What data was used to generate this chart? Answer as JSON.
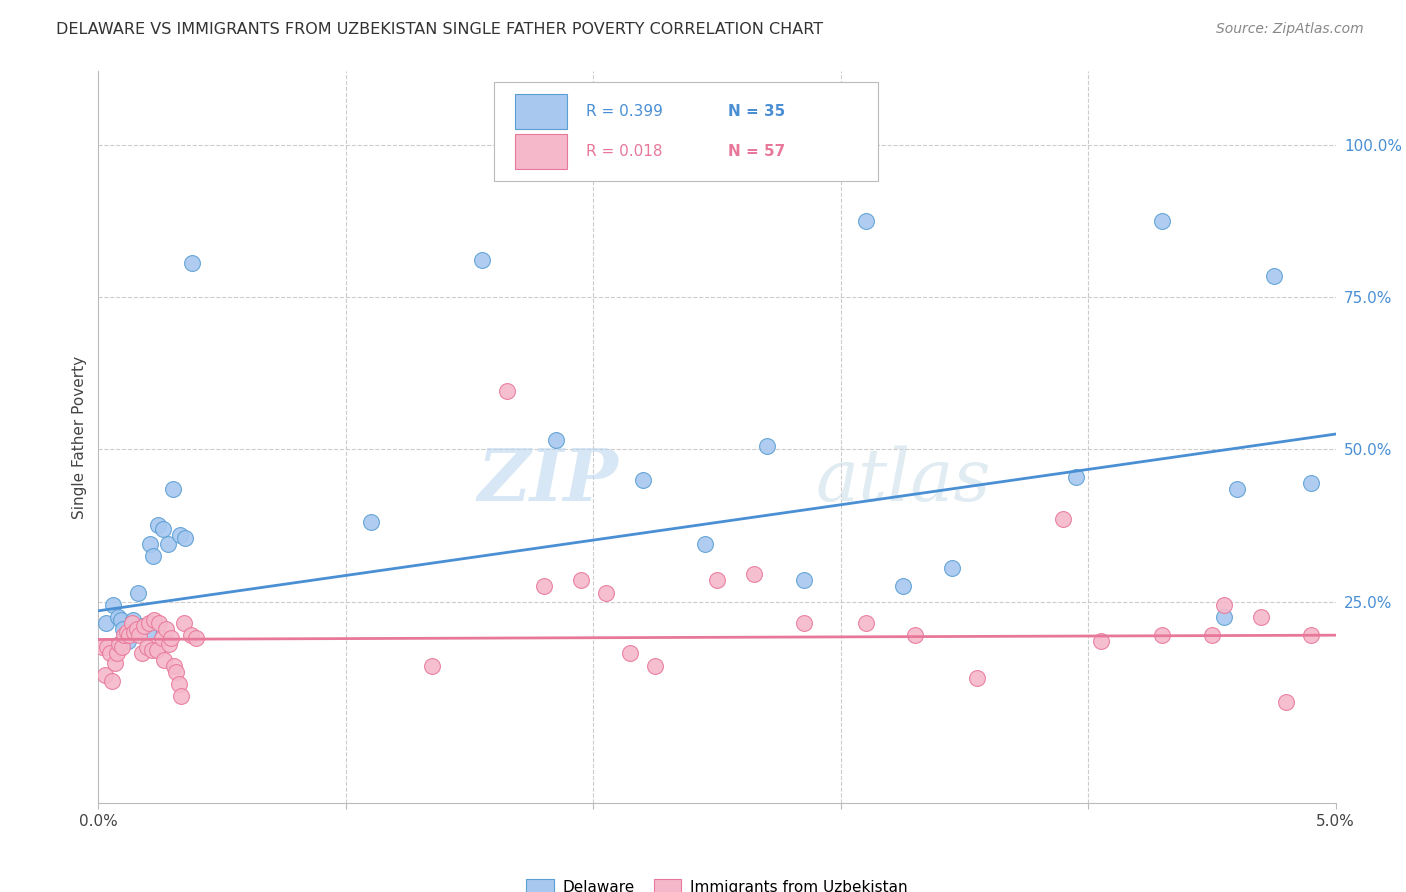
{
  "title": "DELAWARE VS IMMIGRANTS FROM UZBEKISTAN SINGLE FATHER POVERTY CORRELATION CHART",
  "source": "Source: ZipAtlas.com",
  "ylabel": "Single Father Poverty",
  "ylabel_right_ticks": [
    "100.0%",
    "75.0%",
    "50.0%",
    "25.0%"
  ],
  "ylabel_right_values": [
    1.0,
    0.75,
    0.5,
    0.25
  ],
  "xlim": [
    0.0,
    0.05
  ],
  "ylim": [
    -0.08,
    1.12
  ],
  "legend_r1": "0.399",
  "legend_n1": "35",
  "legend_r2": "0.018",
  "legend_n2": "57",
  "delaware_color": "#a8c8f0",
  "uzbekistan_color": "#f5b8cb",
  "delaware_edge_color": "#5a9fd4",
  "uzbekistan_edge_color": "#e8789a",
  "delaware_line_color": "#4a8fd4",
  "uzbekistan_line_color": "#e8789a",
  "right_tick_color": "#4a8fd4",
  "watermark": "ZIPatlas",
  "delaware_x": [
    0.0003,
    0.0006,
    0.0008,
    0.0009,
    0.001,
    0.0012,
    0.0014,
    0.0016,
    0.0018,
    0.002,
    0.0021,
    0.0022,
    0.0024,
    0.0026,
    0.0028,
    0.003,
    0.0033,
    0.0035,
    0.0038,
    0.011,
    0.0155,
    0.0185,
    0.022,
    0.0245,
    0.027,
    0.0285,
    0.031,
    0.0325,
    0.0345,
    0.0395,
    0.043,
    0.0455,
    0.046,
    0.0475,
    0.049
  ],
  "delaware_y": [
    0.215,
    0.245,
    0.225,
    0.22,
    0.205,
    0.185,
    0.22,
    0.265,
    0.21,
    0.2,
    0.345,
    0.325,
    0.375,
    0.37,
    0.345,
    0.435,
    0.36,
    0.355,
    0.805,
    0.38,
    0.81,
    0.515,
    0.45,
    0.345,
    0.505,
    0.285,
    0.875,
    0.275,
    0.305,
    0.455,
    0.875,
    0.225,
    0.435,
    0.785,
    0.445
  ],
  "uzbekistan_x": [
    0.00015,
    0.00025,
    0.00035,
    0.00045,
    0.00055,
    0.00065,
    0.00075,
    0.00085,
    0.00095,
    0.00105,
    0.00115,
    0.00125,
    0.00135,
    0.00145,
    0.00155,
    0.00165,
    0.00175,
    0.00185,
    0.00195,
    0.00205,
    0.00215,
    0.00225,
    0.00235,
    0.00245,
    0.00255,
    0.00265,
    0.00275,
    0.00285,
    0.00295,
    0.00305,
    0.00315,
    0.00325,
    0.00335,
    0.00345,
    0.00375,
    0.00395,
    0.0135,
    0.0165,
    0.018,
    0.0195,
    0.0205,
    0.0215,
    0.0225,
    0.025,
    0.0265,
    0.0285,
    0.031,
    0.033,
    0.0355,
    0.039,
    0.0405,
    0.043,
    0.045,
    0.0455,
    0.047,
    0.048,
    0.049
  ],
  "uzbekistan_y": [
    0.175,
    0.13,
    0.175,
    0.165,
    0.12,
    0.15,
    0.165,
    0.18,
    0.175,
    0.195,
    0.2,
    0.195,
    0.215,
    0.2,
    0.205,
    0.195,
    0.165,
    0.21,
    0.175,
    0.215,
    0.17,
    0.22,
    0.17,
    0.215,
    0.19,
    0.155,
    0.205,
    0.18,
    0.19,
    0.145,
    0.135,
    0.115,
    0.095,
    0.215,
    0.195,
    0.19,
    0.145,
    0.595,
    0.275,
    0.285,
    0.265,
    0.165,
    0.145,
    0.285,
    0.295,
    0.215,
    0.215,
    0.195,
    0.125,
    0.385,
    0.185,
    0.195,
    0.195,
    0.245,
    0.225,
    0.085,
    0.195
  ],
  "delaware_trend_x": [
    0.0,
    0.05
  ],
  "delaware_trend_y": [
    0.235,
    0.525
  ],
  "uzbekistan_trend_x": [
    0.0,
    0.05
  ],
  "uzbekistan_trend_y": [
    0.188,
    0.195
  ],
  "grid_color": "#cccccc",
  "background_color": "#ffffff",
  "title_color": "#333333",
  "source_color": "#888888",
  "label_color": "#444444"
}
